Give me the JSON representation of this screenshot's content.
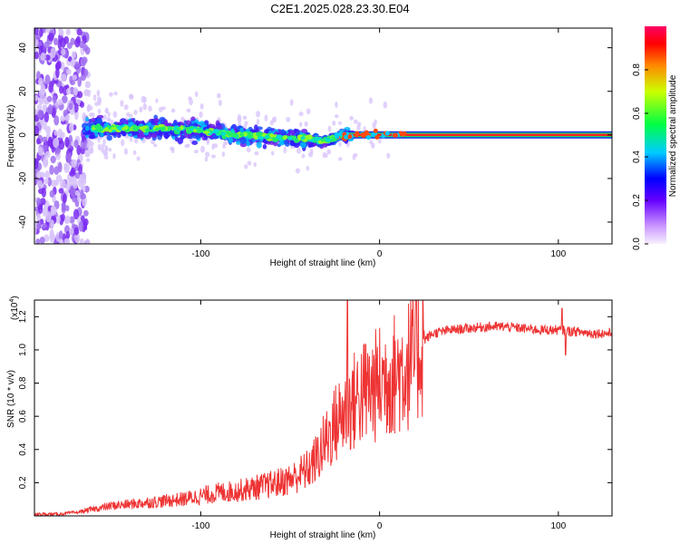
{
  "title": "C2E1.2025.028.23.30.E04",
  "chart_data": [
    {
      "type": "heatmap",
      "xlabel": "Height of straight line (km)",
      "ylabel": "Frequency (Hz)",
      "xlim": [
        -193,
        130
      ],
      "ylim": [
        -50,
        49
      ],
      "xticks": [
        -100,
        0,
        100
      ],
      "yticks": [
        -40,
        -20,
        0,
        20,
        40
      ],
      "xtick_labels": [
        "-100",
        "0",
        "100"
      ],
      "ytick_labels": [
        "-40",
        "-20",
        "0",
        "20",
        "40"
      ],
      "colorbar": {
        "label": "Normalized spectral amplitude",
        "range": [
          0,
          1
        ],
        "ticks": [
          0.0,
          0.2,
          0.4,
          0.6,
          0.8
        ],
        "tick_labels": [
          "0.0",
          "0.2",
          "0.4",
          "0.6",
          "0.8"
        ]
      },
      "description_points": {
        "signal_center_hz": [
          {
            "x": -165,
            "y": 3
          },
          {
            "x": -120,
            "y": 3
          },
          {
            "x": -100,
            "y": 2
          },
          {
            "x": -80,
            "y": 0
          },
          {
            "x": -60,
            "y": -1
          },
          {
            "x": -40,
            "y": -2
          },
          {
            "x": -30,
            "y": -3
          },
          {
            "x": -20,
            "y": 0
          },
          {
            "x": 0,
            "y": 0
          },
          {
            "x": 130,
            "y": 0
          }
        ]
      }
    },
    {
      "type": "line",
      "xlabel": "Height of straight line (km)",
      "ylabel": "SNR (10 * v/v)",
      "multiplier_label": "(x10",
      "multiplier_exp": "4",
      "multiplier_close": ")",
      "xlim": [
        -193,
        130
      ],
      "ylim": [
        0,
        1.3
      ],
      "xticks": [
        -100,
        0,
        100
      ],
      "yticks": [
        0.2,
        0.4,
        0.6,
        0.8,
        1.0,
        1.2
      ],
      "xtick_labels": [
        "-100",
        "0",
        "100"
      ],
      "ytick_labels": [
        "0.2",
        "0.4",
        "0.6",
        "0.8",
        "1.0",
        "1.2"
      ],
      "color": "#ee3333",
      "series": [
        {
          "name": "SNR",
          "x": [
            -193,
            -180,
            -170,
            -160,
            -150,
            -140,
            -130,
            -120,
            -110,
            -100,
            -90,
            -80,
            -70,
            -60,
            -50,
            -40,
            -35,
            -30,
            -25,
            -20,
            -15,
            -10,
            -5,
            0,
            5,
            10,
            15,
            20,
            25,
            30,
            40,
            50,
            60,
            70,
            80,
            90,
            100,
            110,
            120,
            130
          ],
          "values": [
            0.01,
            0.01,
            0.02,
            0.04,
            0.06,
            0.07,
            0.08,
            0.09,
            0.1,
            0.12,
            0.14,
            0.15,
            0.17,
            0.19,
            0.22,
            0.28,
            0.35,
            0.45,
            0.55,
            0.62,
            0.68,
            0.74,
            0.76,
            0.8,
            0.84,
            0.86,
            0.9,
            0.96,
            1.06,
            1.1,
            1.12,
            1.13,
            1.14,
            1.14,
            1.13,
            1.12,
            1.12,
            1.11,
            1.1,
            1.1
          ]
        }
      ]
    }
  ]
}
